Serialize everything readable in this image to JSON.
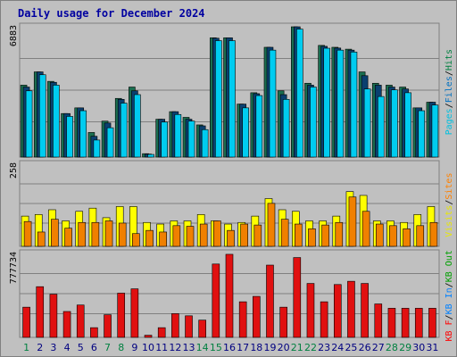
{
  "chart_data": {
    "type": "bar",
    "title": "Daily usage for December 2024",
    "categories": [
      "1",
      "2",
      "3",
      "4",
      "5",
      "6",
      "7",
      "8",
      "9",
      "10",
      "11",
      "12",
      "13",
      "14",
      "15",
      "16",
      "17",
      "18",
      "19",
      "20",
      "21",
      "22",
      "23",
      "24",
      "25",
      "26",
      "27",
      "28",
      "29",
      "30",
      "31"
    ],
    "weekend_days": [
      "1",
      "7",
      "8",
      "14",
      "15",
      "21",
      "22",
      "28",
      "29"
    ],
    "panels": [
      {
        "id": "pages-files-hits",
        "max_label": "6883",
        "ymax": 6883,
        "legend": [
          {
            "text": "Pages",
            "color": "#00c0e0"
          },
          {
            "text": "/",
            "color": "#000000"
          },
          {
            "text": "Files",
            "color": "#0070c0"
          },
          {
            "text": "/",
            "color": "#000000"
          },
          {
            "text": "Hits",
            "color": "#008040"
          }
        ],
        "series": [
          {
            "name": "Hits",
            "color": "#1a6e50",
            "values": [
              3800,
              4500,
              4000,
              2300,
              2600,
              1300,
              1900,
              3100,
              3700,
              180,
              2000,
              2400,
              2100,
              1700,
              6300,
              6300,
              2800,
              3400,
              5800,
              3500,
              6883,
              3900,
              5900,
              5800,
              5700,
              4500,
              3900,
              3800,
              3700,
              2600,
              2900
            ]
          },
          {
            "name": "Files",
            "color": "#0a4070",
            "values": [
              3700,
              4500,
              3950,
              2300,
              2600,
              1100,
              1800,
              3050,
              3500,
              160,
              2000,
              2400,
              2000,
              1650,
              6280,
              6300,
              2800,
              3350,
              5800,
              3300,
              6883,
              3800,
              5850,
              5760,
              5650,
              4300,
              3800,
              3700,
              3600,
              2600,
              2900
            ]
          },
          {
            "name": "Pages",
            "color": "#00ccf0",
            "values": [
              3500,
              4350,
              3800,
              2150,
              2450,
              900,
              1550,
              2850,
              3300,
              140,
              1850,
              2250,
              1900,
              1450,
              6150,
              6150,
              2600,
              3250,
              5650,
              3050,
              6760,
              3700,
              5750,
              5650,
              5550,
              3600,
              3200,
              3550,
              3400,
              2450,
              2750
            ]
          }
        ]
      },
      {
        "id": "visits-sites",
        "max_label": "258",
        "ymax": 258,
        "legend": [
          {
            "text": "Visits",
            "color": "#e8e800"
          },
          {
            "text": "/",
            "color": "#000000"
          },
          {
            "text": "Sites",
            "color": "#ff8000"
          }
        ],
        "series": [
          {
            "name": "Visits",
            "color": "#ffff00",
            "values": [
              95,
              100,
              115,
              80,
              110,
              120,
              90,
              125,
              125,
              75,
              70,
              80,
              80,
              100,
              80,
              70,
              75,
              95,
              150,
              115,
              110,
              80,
              80,
              95,
              172,
              160,
              80,
              80,
              75,
              100,
              125
            ]
          },
          {
            "name": "Sites",
            "color": "#f08000",
            "values": [
              78,
              45,
              85,
              57,
              75,
              75,
              80,
              73,
              40,
              50,
              45,
              65,
              63,
              70,
              80,
              50,
              70,
              67,
              135,
              85,
              70,
              55,
              67,
              75,
              155,
              110,
              70,
              65,
              55,
              65,
              75
            ]
          }
        ]
      },
      {
        "id": "kbf-kbin-kbout",
        "max_label": "777734",
        "ymax": 777734,
        "legend": [
          {
            "text": "KB F",
            "color": "#ff0000"
          },
          {
            "text": "/",
            "color": "#000000"
          },
          {
            "text": "KB In",
            "color": "#0080ff"
          },
          {
            "text": "/",
            "color": "#000000"
          },
          {
            "text": "KB Out",
            "color": "#00a000"
          }
        ],
        "series": [
          {
            "name": "KB F",
            "color": "#e01010",
            "values": [
              280000,
              470000,
              400000,
              240000,
              300000,
              90000,
              210000,
              410000,
              450000,
              20000,
              90000,
              220000,
              200000,
              160000,
              680000,
              770000,
              330000,
              380000,
              670000,
              280000,
              740000,
              500000,
              330000,
              490000,
              520000,
              500000,
              310000,
              270000,
              270000,
              270000,
              270000
            ]
          }
        ]
      }
    ]
  }
}
